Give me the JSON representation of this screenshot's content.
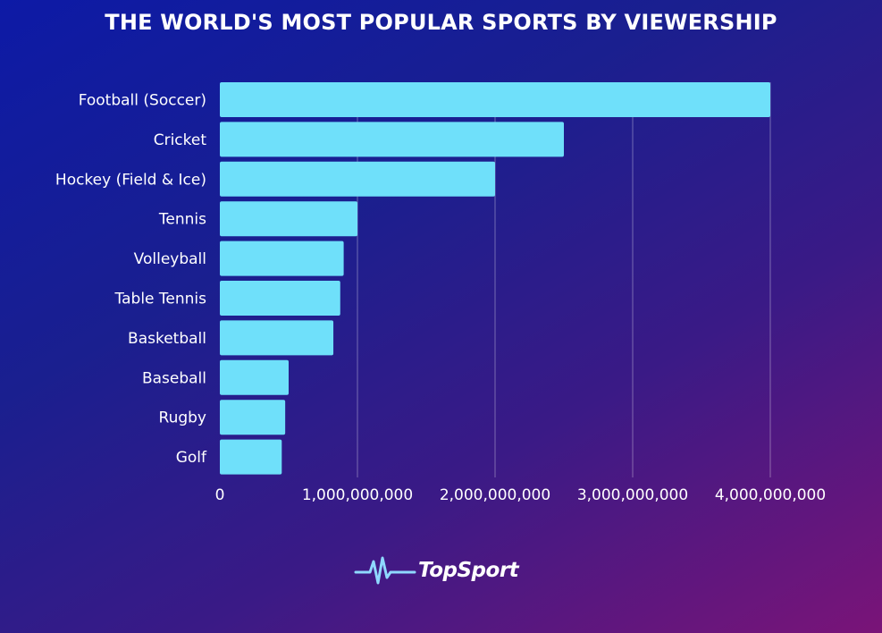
{
  "title": "THE WORLD'S MOST POPULAR SPORTS BY VIEWERSHIP",
  "brand": {
    "name": "TopSport",
    "icon": "pulse-line-icon"
  },
  "colors": {
    "bar": "#6fe0fa",
    "grid": "#ffffff",
    "text": "#ffffff"
  },
  "chart_data": {
    "type": "bar",
    "orientation": "horizontal",
    "title": "THE WORLD'S MOST POPULAR SPORTS BY VIEWERSHIP",
    "categories": [
      "Football (Soccer)",
      "Cricket",
      "Hockey (Field & Ice)",
      "Tennis",
      "Volleyball",
      "Table Tennis",
      "Basketball",
      "Baseball",
      "Rugby",
      "Golf"
    ],
    "values": [
      4000000000,
      2500000000,
      2000000000,
      1000000000,
      900000000,
      875000000,
      825000000,
      500000000,
      475000000,
      450000000
    ],
    "xlim": [
      0,
      4000000000
    ],
    "xticks": [
      0,
      1000000000,
      2000000000,
      3000000000,
      4000000000
    ],
    "xtick_labels": [
      "0",
      "1,000,000,000",
      "2,000,000,000",
      "3,000,000,000",
      "4,000,000,000"
    ],
    "grid": true,
    "legend": "none"
  }
}
